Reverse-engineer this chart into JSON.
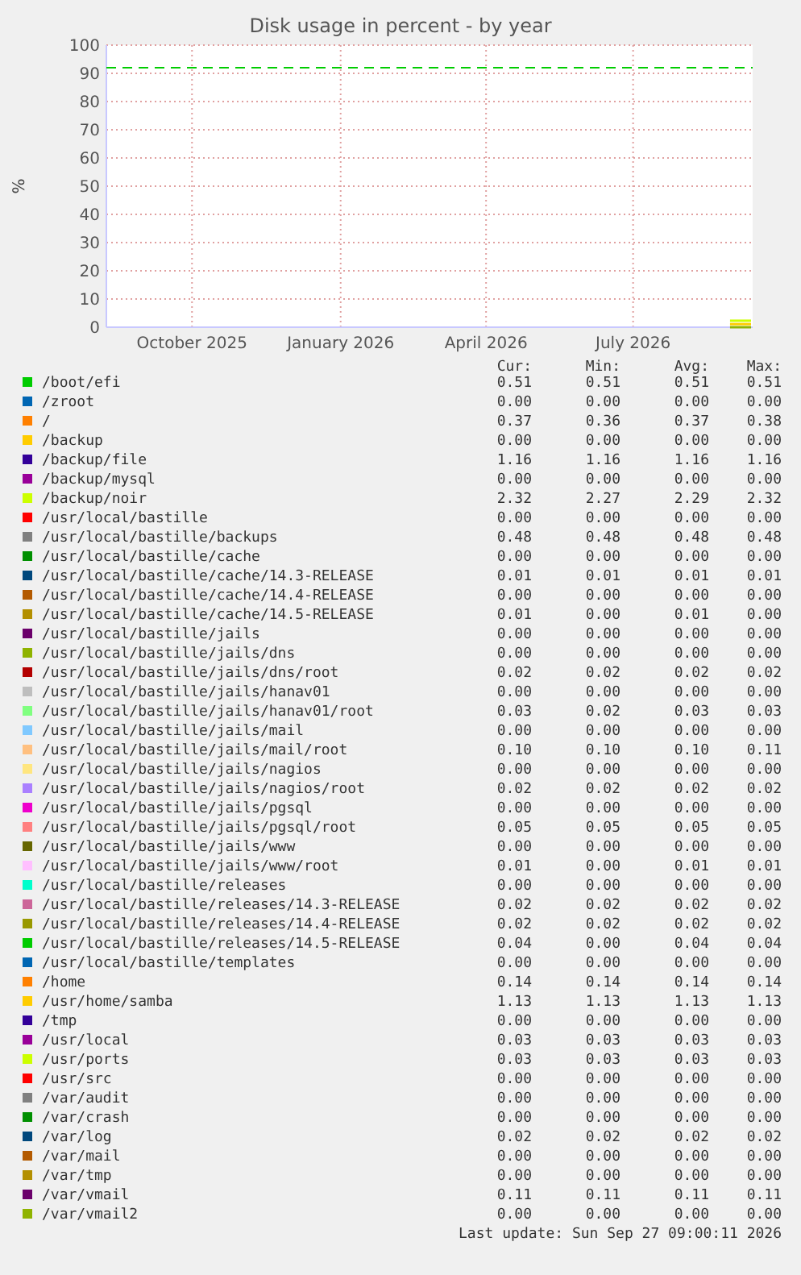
{
  "chart_data": {
    "type": "line",
    "title": "Disk usage in percent - by year",
    "ylabel": "%",
    "xlim": [
      "2025-08-24",
      "2026-09-28"
    ],
    "xticks": [
      {
        "value": "2025-10-16",
        "label": "October 2025"
      },
      {
        "value": "2026-01-16",
        "label": "January 2026"
      },
      {
        "value": "2026-04-16",
        "label": "April 2026"
      },
      {
        "value": "2026-07-16",
        "label": "July 2026"
      }
    ],
    "ylim": [
      0,
      100
    ],
    "yticks": [
      0,
      10,
      20,
      30,
      40,
      50,
      60,
      70,
      80,
      90,
      100
    ],
    "grid": true,
    "legend": "bottom",
    "marker": "none",
    "line_style": "solid",
    "ref_lines": [
      {
        "axis": "y",
        "value": 92,
        "color": "#00cc00",
        "line_style": "dashed"
      }
    ],
    "x": [
      "2026-09-14",
      "2026-09-27"
    ],
    "series": [
      {
        "name": "/boot/efi",
        "color": "#00cc00",
        "values": [
          null,
          null
        ]
      },
      {
        "name": "/zroot",
        "color": "#0066b3",
        "values": [
          null,
          null
        ]
      },
      {
        "name": "/",
        "color": "#ff8000",
        "values": [
          null,
          null
        ]
      },
      {
        "name": "/backup",
        "color": "#ffcc00",
        "values": [
          null,
          null
        ]
      },
      {
        "name": "/backup/file",
        "color": "#330099",
        "values": [
          null,
          null
        ]
      },
      {
        "name": "/backup/mysql",
        "color": "#990099",
        "values": [
          null,
          null
        ]
      },
      {
        "name": "/backup/noir",
        "color": "#ccff00",
        "values": [
          2.3,
          2.3
        ]
      },
      {
        "name": "/usr/local/bastille",
        "color": "#ff0000",
        "values": [
          null,
          null
        ]
      },
      {
        "name": "/usr/local/bastille/backups",
        "color": "#808080",
        "values": [
          null,
          null
        ]
      },
      {
        "name": "/usr/local/bastille/cache",
        "color": "#008f00",
        "values": [
          null,
          null
        ]
      },
      {
        "name": "/usr/local/bastille/cache/14.3-RELEASE",
        "color": "#00487d",
        "values": [
          null,
          null
        ]
      },
      {
        "name": "/usr/local/bastille/cache/14.4-RELEASE",
        "color": "#b35a00",
        "values": [
          null,
          null
        ]
      },
      {
        "name": "/usr/local/bastille/cache/14.5-RELEASE",
        "color": "#b38f00",
        "values": [
          null,
          null
        ]
      },
      {
        "name": "/usr/local/bastille/jails",
        "color": "#6b006b",
        "values": [
          null,
          null
        ]
      },
      {
        "name": "/usr/local/bastille/jails/dns",
        "color": "#8fb300",
        "values": [
          null,
          null
        ]
      },
      {
        "name": "/usr/local/bastille/jails/dns/root",
        "color": "#b30000",
        "values": [
          null,
          null
        ]
      },
      {
        "name": "/usr/local/bastille/jails/hanav01",
        "color": "#bebebe",
        "values": [
          null,
          null
        ]
      },
      {
        "name": "/usr/local/bastille/jails/hanav01/root",
        "color": "#80ff80",
        "values": [
          null,
          null
        ]
      },
      {
        "name": "/usr/local/bastille/jails/mail",
        "color": "#80c9ff",
        "values": [
          null,
          null
        ]
      },
      {
        "name": "/usr/local/bastille/jails/mail/root",
        "color": "#ffc080",
        "values": [
          null,
          null
        ]
      },
      {
        "name": "/usr/local/bastille/jails/nagios",
        "color": "#ffe680",
        "values": [
          null,
          null
        ]
      },
      {
        "name": "/usr/local/bastille/jails/nagios/root",
        "color": "#aa80ff",
        "values": [
          null,
          null
        ]
      },
      {
        "name": "/usr/local/bastille/jails/pgsql",
        "color": "#ee00cc",
        "values": [
          null,
          null
        ]
      },
      {
        "name": "/usr/local/bastille/jails/pgsql/root",
        "color": "#ff8080",
        "values": [
          null,
          null
        ]
      },
      {
        "name": "/usr/local/bastille/jails/www",
        "color": "#666600",
        "values": [
          null,
          null
        ]
      },
      {
        "name": "/usr/local/bastille/jails/www/root",
        "color": "#ffbfff",
        "values": [
          null,
          null
        ]
      },
      {
        "name": "/usr/local/bastille/releases",
        "color": "#00ffcc",
        "values": [
          null,
          null
        ]
      },
      {
        "name": "/usr/local/bastille/releases/14.3-RELEASE",
        "color": "#cc6699",
        "values": [
          null,
          null
        ]
      },
      {
        "name": "/usr/local/bastille/releases/14.4-RELEASE",
        "color": "#999900",
        "values": [
          null,
          null
        ]
      },
      {
        "name": "/usr/local/bastille/releases/14.5-RELEASE",
        "color": "#00cc00",
        "values": [
          null,
          null
        ]
      },
      {
        "name": "/usr/local/bastille/templates",
        "color": "#0066b3",
        "values": [
          null,
          null
        ]
      },
      {
        "name": "/home",
        "color": "#ff8000",
        "values": [
          null,
          null
        ]
      },
      {
        "name": "/usr/home/samba",
        "color": "#ffcc00",
        "values": [
          1.1,
          1.1
        ]
      },
      {
        "name": "/tmp",
        "color": "#330099",
        "values": [
          null,
          null
        ]
      },
      {
        "name": "/usr/local",
        "color": "#990099",
        "values": [
          null,
          null
        ]
      },
      {
        "name": "/usr/ports",
        "color": "#ccff00",
        "values": [
          null,
          null
        ]
      },
      {
        "name": "/usr/src",
        "color": "#ff0000",
        "values": [
          null,
          null
        ]
      },
      {
        "name": "/var/audit",
        "color": "#808080",
        "values": [
          null,
          null
        ]
      },
      {
        "name": "/var/crash",
        "color": "#008f00",
        "values": [
          null,
          null
        ]
      },
      {
        "name": "/var/log",
        "color": "#00487d",
        "values": [
          null,
          null
        ]
      },
      {
        "name": "/var/mail",
        "color": "#b35a00",
        "values": [
          null,
          null
        ]
      },
      {
        "name": "/var/tmp",
        "color": "#b38f00",
        "values": [
          null,
          null
        ]
      },
      {
        "name": "/var/vmail",
        "color": "#6b006b",
        "values": [
          null,
          null
        ]
      },
      {
        "name": "/var/vmail2",
        "color": "#8fb300",
        "values": [
          0,
          0
        ]
      }
    ],
    "annotations": [
      "Cur:",
      "Min:",
      "Avg:",
      "Max:",
      "0.51 0.51 0.51 0.51",
      "0.00 0.00 0.00 0.00",
      "0.37 0.36 0.37 0.38",
      "0.00 0.00 0.00 0.00",
      "1.16 1.16 1.16 1.16",
      "0.00 0.00 0.00 0.00",
      "2.32 2.27 2.29 2.32",
      "0.00 0.00 0.00 0.00",
      "0.48 0.48 0.48 0.48",
      "0.00 0.00 0.00 0.00",
      "0.01 0.01 0.01 0.01",
      "0.00 0.00 0.00 0.00",
      "0.01 0.00 0.01 0.00",
      "0.00 0.00 0.00 0.00",
      "0.00 0.00 0.00 0.00",
      "0.02 0.02 0.02 0.02",
      "0.00 0.00 0.00 0.00",
      "0.03 0.02 0.03 0.03",
      "0.00 0.00 0.00 0.00",
      "0.10 0.10 0.10 0.11",
      "0.00 0.00 0.00 0.00",
      "0.02 0.02 0.02 0.02",
      "0.00 0.00 0.00 0.00",
      "0.05 0.05 0.05 0.05",
      "0.00 0.00 0.00 0.00",
      "0.01 0.00 0.01 0.01",
      "0.00 0.00 0.00 0.00",
      "0.02 0.02 0.02 0.02",
      "0.02 0.02 0.02 0.02",
      "0.04 0.00 0.04 0.04",
      "0.00 0.00 0.00 0.00",
      "0.14 0.14 0.14 0.14",
      "1.13 1.13 1.13 1.13",
      "0.00 0.00 0.00 0.00",
      "0.03 0.03 0.03 0.03",
      "0.03 0.03 0.03 0.03",
      "0.00 0.00 0.00 0.00",
      "0.00 0.00 0.00 0.00",
      "0.00 0.00 0.00 0.00",
      "0.02 0.02 0.02 0.02",
      "0.00 0.00 0.00 0.00",
      "0.00 0.00 0.00 0.00",
      "0.11 0.11 0.11 0.11",
      "0.00 0.00 0.00 0.00",
      "Last update: Sun Sep 27 09:00:11 2026"
    ]
  }
}
